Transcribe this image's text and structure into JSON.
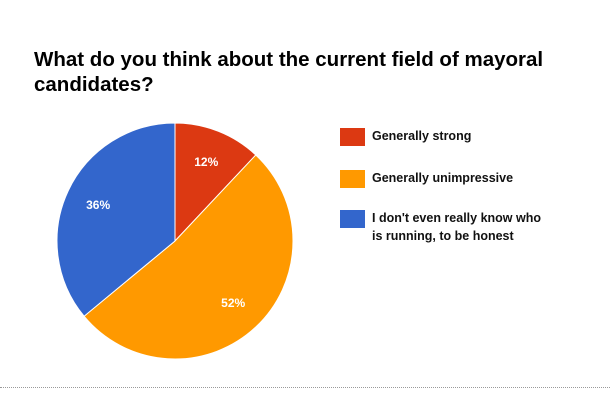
{
  "chart_data": {
    "type": "pie",
    "title": "What do you think about the current field of mayoral candidates?",
    "slices": [
      {
        "label": "Generally strong",
        "value": 12,
        "display": "12%",
        "color": "#dc3912"
      },
      {
        "label": "Generally unimpressive",
        "value": 52,
        "display": "52%",
        "color": "#ff9900"
      },
      {
        "label": "I don't even really know who is running, to be honest",
        "value": 36,
        "display": "36%",
        "color": "#3366cc"
      }
    ],
    "legend_position": "right",
    "start_angle": "top, clockwise"
  }
}
